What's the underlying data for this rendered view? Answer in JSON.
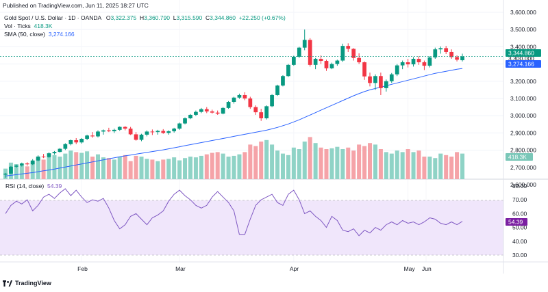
{
  "header": {
    "published": "Published on TradingView.com, Jun 11, 2025 18:27 UTC"
  },
  "legend": {
    "symbol": "Gold Spot / U.S. Dollar · 1D · OANDA",
    "O": "3,322.375",
    "H": "3,360.790",
    "L": "3,315.590",
    "C": "3,344.860",
    "change": "+22.250 (+0.67%)",
    "vol_label": "Vol · Ticks",
    "vol_value": "418.3K",
    "sma_label": "SMA (50, close)",
    "sma_value": "3,274.166"
  },
  "rsi_legend": {
    "label": "RSI (14, close)",
    "value": "54.39"
  },
  "price_badges": {
    "last": "3,344.860",
    "sma": "3,274.166",
    "hidden": "3,300.000",
    "volume": "418.3K",
    "rsi": "54.39"
  },
  "footer": {
    "brand": "TradingView"
  },
  "colors": {
    "up": "#089981",
    "down": "#f23645",
    "vol_up": "#8fd3c6",
    "vol_down": "#f5a3a8",
    "sma": "#2962ff",
    "rsi": "#7e57c2",
    "rsi_band": "#f0e6fb"
  },
  "chart_data": [
    {
      "type": "candlestick",
      "title": "Gold Spot / U.S. Dollar · 1D · OANDA",
      "y_axis_ticks": [
        "3,600.000",
        "3,500.000",
        "3,400.000",
        "3,300.000",
        "3,200.000",
        "3,100.000",
        "3,000.000",
        "2,900.000",
        "2,800.000",
        "2,700.000",
        "2,600.000"
      ],
      "y_axis_values": [
        3600,
        3500,
        3400,
        3300,
        3200,
        3100,
        3000,
        2900,
        2800,
        2700,
        2600
      ],
      "x_axis_ticks": [
        "Feb",
        "Mar",
        "Apr",
        "May",
        "Jun"
      ],
      "ylim": [
        2580,
        3620
      ],
      "candles": [
        [
          2658,
          2668,
          2640,
          2664
        ],
        [
          2664,
          2708,
          2660,
          2704
        ],
        [
          2704,
          2716,
          2698,
          2711
        ],
        [
          2711,
          2728,
          2705,
          2723
        ],
        [
          2723,
          2730,
          2710,
          2718
        ],
        [
          2718,
          2748,
          2714,
          2740
        ],
        [
          2740,
          2770,
          2735,
          2763
        ],
        [
          2763,
          2778,
          2754,
          2760
        ],
        [
          2760,
          2788,
          2756,
          2782
        ],
        [
          2782,
          2795,
          2774,
          2790
        ],
        [
          2790,
          2812,
          2786,
          2808
        ],
        [
          2808,
          2840,
          2801,
          2835
        ],
        [
          2835,
          2862,
          2828,
          2858
        ],
        [
          2858,
          2870,
          2835,
          2845
        ],
        [
          2845,
          2870,
          2838,
          2866
        ],
        [
          2866,
          2890,
          2858,
          2885
        ],
        [
          2885,
          2905,
          2872,
          2880
        ],
        [
          2880,
          2915,
          2874,
          2908
        ],
        [
          2908,
          2920,
          2890,
          2915
        ],
        [
          2915,
          2930,
          2905,
          2910
        ],
        [
          2910,
          2925,
          2900,
          2918
        ],
        [
          2918,
          2938,
          2912,
          2935
        ],
        [
          2935,
          2940,
          2915,
          2925
        ],
        [
          2925,
          2935,
          2888,
          2892
        ],
        [
          2892,
          2905,
          2855,
          2860
        ],
        [
          2860,
          2895,
          2852,
          2890
        ],
        [
          2890,
          2915,
          2880,
          2908
        ],
        [
          2908,
          2920,
          2888,
          2905
        ],
        [
          2905,
          2918,
          2890,
          2912
        ],
        [
          2912,
          2922,
          2895,
          2900
        ],
        [
          2900,
          2915,
          2890,
          2910
        ],
        [
          2910,
          2930,
          2902,
          2925
        ],
        [
          2925,
          2960,
          2918,
          2955
        ],
        [
          2955,
          2990,
          2950,
          2985
        ],
        [
          2985,
          3010,
          2980,
          3005
        ],
        [
          3005,
          3030,
          2998,
          3022
        ],
        [
          3022,
          3045,
          3015,
          3038
        ],
        [
          3038,
          3050,
          3015,
          3025
        ],
        [
          3025,
          3035,
          3012,
          3018
        ],
        [
          3018,
          3030,
          3005,
          3012
        ],
        [
          3012,
          3050,
          3008,
          3045
        ],
        [
          3045,
          3085,
          3040,
          3080
        ],
        [
          3080,
          3110,
          3070,
          3105
        ],
        [
          3105,
          3128,
          3098,
          3120
        ],
        [
          3120,
          3136,
          3090,
          3100
        ],
        [
          3100,
          3110,
          3040,
          3050
        ],
        [
          3050,
          3060,
          3005,
          3020
        ],
        [
          3020,
          3040,
          2970,
          2985
        ],
        [
          2985,
          3060,
          2978,
          3055
        ],
        [
          3055,
          3125,
          3050,
          3120
        ],
        [
          3120,
          3180,
          3115,
          3175
        ],
        [
          3175,
          3235,
          3170,
          3230
        ],
        [
          3230,
          3300,
          3225,
          3295
        ],
        [
          3295,
          3348,
          3290,
          3342
        ],
        [
          3342,
          3400,
          3335,
          3395
        ],
        [
          3395,
          3500,
          3380,
          3440
        ],
        [
          3440,
          3450,
          3285,
          3295
        ],
        [
          3295,
          3335,
          3270,
          3330
        ],
        [
          3330,
          3350,
          3300,
          3318
        ],
        [
          3318,
          3325,
          3260,
          3275
        ],
        [
          3275,
          3308,
          3270,
          3300
        ],
        [
          3300,
          3325,
          3290,
          3320
        ],
        [
          3320,
          3418,
          3312,
          3405
        ],
        [
          3405,
          3420,
          3370,
          3388
        ],
        [
          3388,
          3392,
          3320,
          3335
        ],
        [
          3335,
          3362,
          3300,
          3310
        ],
        [
          3310,
          3315,
          3208,
          3228
        ],
        [
          3228,
          3250,
          3170,
          3190
        ],
        [
          3190,
          3240,
          3150,
          3230
        ],
        [
          3230,
          3250,
          3120,
          3160
        ],
        [
          3160,
          3210,
          3140,
          3200
        ],
        [
          3200,
          3248,
          3190,
          3240
        ],
        [
          3240,
          3300,
          3230,
          3292
        ],
        [
          3292,
          3320,
          3270,
          3310
        ],
        [
          3310,
          3330,
          3280,
          3298
        ],
        [
          3298,
          3340,
          3285,
          3330
        ],
        [
          3330,
          3345,
          3295,
          3310
        ],
        [
          3310,
          3320,
          3265,
          3290
        ],
        [
          3290,
          3345,
          3280,
          3338
        ],
        [
          3338,
          3395,
          3330,
          3385
        ],
        [
          3385,
          3402,
          3360,
          3392
        ],
        [
          3392,
          3405,
          3358,
          3370
        ],
        [
          3370,
          3385,
          3330,
          3340
        ],
        [
          3340,
          3350,
          3315,
          3325
        ],
        [
          3322,
          3360,
          3315,
          3344
        ]
      ]
    },
    {
      "type": "line",
      "series": [
        {
          "name": "SMA (50, close)",
          "values": [
            2650,
            2654,
            2658,
            2662,
            2666,
            2670,
            2675,
            2680,
            2685,
            2690,
            2696,
            2702,
            2708,
            2714,
            2720,
            2726,
            2732,
            2738,
            2744,
            2750,
            2756,
            2762,
            2767,
            2772,
            2777,
            2782,
            2787,
            2792,
            2797,
            2802,
            2808,
            2814,
            2820,
            2826,
            2832,
            2838,
            2844,
            2850,
            2856,
            2862,
            2868,
            2874,
            2880,
            2886,
            2892,
            2898,
            2904,
            2910,
            2916,
            2924,
            2932,
            2942,
            2952,
            2964,
            2976,
            2990,
            3004,
            3018,
            3032,
            3046,
            3060,
            3074,
            3088,
            3102,
            3116,
            3128,
            3140,
            3150,
            3158,
            3166,
            3174,
            3182,
            3190,
            3198,
            3206,
            3214,
            3222,
            3230,
            3238,
            3246,
            3252,
            3258,
            3264,
            3270,
            3274.166
          ]
        }
      ]
    },
    {
      "type": "bar",
      "title": "Vol · Ticks",
      "values": [
        14,
        22,
        20,
        18,
        17,
        24,
        28,
        26,
        30,
        32,
        30,
        34,
        38,
        36,
        35,
        37,
        30,
        33,
        29,
        28,
        26,
        30,
        32,
        24,
        31,
        30,
        27,
        26,
        24,
        26,
        27,
        29,
        25,
        28,
        30,
        29,
        31,
        33,
        35,
        36,
        34,
        30,
        31,
        33,
        36,
        46,
        44,
        50,
        52,
        46,
        38,
        34,
        32,
        42,
        40,
        50,
        56,
        48,
        42,
        40,
        41,
        43,
        40,
        42,
        38,
        46,
        44,
        48,
        46,
        40,
        36,
        34,
        38,
        36,
        40,
        36,
        38,
        30,
        30,
        28,
        34,
        32,
        30,
        36,
        34
      ]
    },
    {
      "type": "line",
      "title": "RSI (14, close)",
      "y_axis_ticks": [
        "80.00",
        "70.00",
        "60.00",
        "50.00",
        "40.00",
        "30.00"
      ],
      "y_axis_values": [
        80,
        70,
        60,
        50,
        40,
        30
      ],
      "ylim": [
        28,
        82
      ],
      "series": [
        {
          "name": "RSI (14, close)",
          "values": [
            60,
            66,
            69,
            67,
            70,
            62,
            66,
            72,
            74,
            71,
            75,
            78,
            73,
            77,
            72,
            68,
            70,
            69,
            71,
            64,
            55,
            49,
            52,
            58,
            60,
            56,
            52,
            57,
            59,
            62,
            69,
            74,
            77,
            73,
            70,
            66,
            64,
            66,
            72,
            76,
            72,
            68,
            62,
            45,
            45,
            56,
            66,
            70,
            72,
            74,
            68,
            66,
            74,
            77,
            70,
            60,
            62,
            58,
            55,
            50,
            58,
            55,
            48,
            47,
            49,
            44,
            48,
            46,
            50,
            48,
            52,
            54,
            52,
            55,
            53,
            54,
            52,
            54,
            57,
            56,
            53,
            52,
            54,
            52,
            54.39
          ]
        }
      ]
    }
  ]
}
